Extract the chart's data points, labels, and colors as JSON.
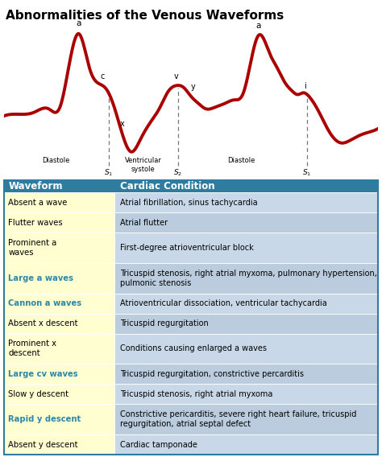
{
  "title": "Abnormalities of the Venous Waveforms",
  "title_fontsize": 11,
  "waveform_color": "#AA0000",
  "header_bg": "#2E7DA0",
  "header_fg": "#FFFFFF",
  "row_bg_left": "#FEFED0",
  "row_bg_right_even": "#C8D8E8",
  "row_bg_right_odd": "#BACCDE",
  "link_color": "#2E87A8",
  "col_split": 0.295,
  "table_rows": [
    {
      "waveform": "Absent a wave",
      "condition": "Atrial fibrillation, sinus tachycardia",
      "link": false,
      "tall": false
    },
    {
      "waveform": "Flutter waves",
      "condition": "Atrial flutter",
      "link": false,
      "tall": false
    },
    {
      "waveform": "Prominent a\nwaves",
      "condition": "First-degree atrioventricular block",
      "link": false,
      "tall": true
    },
    {
      "waveform": "Large a waves",
      "condition": "Tricuspid stenosis, right atrial myxoma, pulmonary hypertension,\npulmonic stenosis",
      "link": true,
      "tall": true
    },
    {
      "waveform": "Cannon a waves",
      "condition": "Atrioventricular dissociation, ventricular tachycardia",
      "link": true,
      "tall": false
    },
    {
      "waveform": "Absent x descent",
      "condition": "Tricuspid regurgitation",
      "link": false,
      "tall": false
    },
    {
      "waveform": "Prominent x\ndescent",
      "condition": "Conditions causing enlarged a waves",
      "link": false,
      "tall": true
    },
    {
      "waveform": "Large cv waves",
      "condition": "Tricuspid regurgitation, constrictive percarditis",
      "link": true,
      "tall": false
    },
    {
      "waveform": "Slow y descent",
      "condition": "Tricuspid stenosis, right atrial myxoma",
      "link": false,
      "tall": false
    },
    {
      "waveform": "Rapid y descent",
      "condition": "Constrictive pericarditis, severe right heart failure, tricuspid\nregurgitation, atrial septal defect",
      "link": true,
      "tall": true
    },
    {
      "waveform": "Absent y descent",
      "condition": "Cardiac tamponade",
      "link": false,
      "tall": false
    }
  ],
  "waveform_keypoints": [
    [
      0.0,
      0.55
    ],
    [
      0.4,
      0.6
    ],
    [
      0.8,
      0.65
    ],
    [
      1.2,
      0.75
    ],
    [
      1.5,
      0.8
    ],
    [
      2.0,
      2.85
    ],
    [
      2.3,
      1.85
    ],
    [
      2.55,
      1.45
    ],
    [
      2.7,
      1.35
    ],
    [
      2.9,
      0.95
    ],
    [
      3.15,
      0.1
    ],
    [
      3.4,
      -0.45
    ],
    [
      3.65,
      -0.1
    ],
    [
      3.9,
      0.35
    ],
    [
      4.15,
      0.75
    ],
    [
      4.4,
      1.25
    ],
    [
      4.6,
      1.4
    ],
    [
      4.8,
      1.35
    ],
    [
      5.0,
      1.1
    ],
    [
      5.2,
      0.9
    ],
    [
      5.4,
      0.75
    ],
    [
      5.65,
      0.8
    ],
    [
      5.9,
      0.9
    ],
    [
      6.15,
      1.0
    ],
    [
      6.4,
      1.2
    ],
    [
      6.8,
      2.8
    ],
    [
      7.1,
      2.3
    ],
    [
      7.3,
      1.9
    ],
    [
      7.5,
      1.5
    ],
    [
      7.7,
      1.25
    ],
    [
      7.85,
      1.15
    ],
    [
      8.0,
      1.2
    ],
    [
      8.15,
      1.1
    ],
    [
      8.4,
      0.7
    ],
    [
      8.7,
      0.1
    ],
    [
      9.0,
      -0.2
    ],
    [
      9.3,
      -0.1
    ],
    [
      9.6,
      0.05
    ],
    [
      9.9,
      0.15
    ],
    [
      10.0,
      0.2
    ]
  ]
}
